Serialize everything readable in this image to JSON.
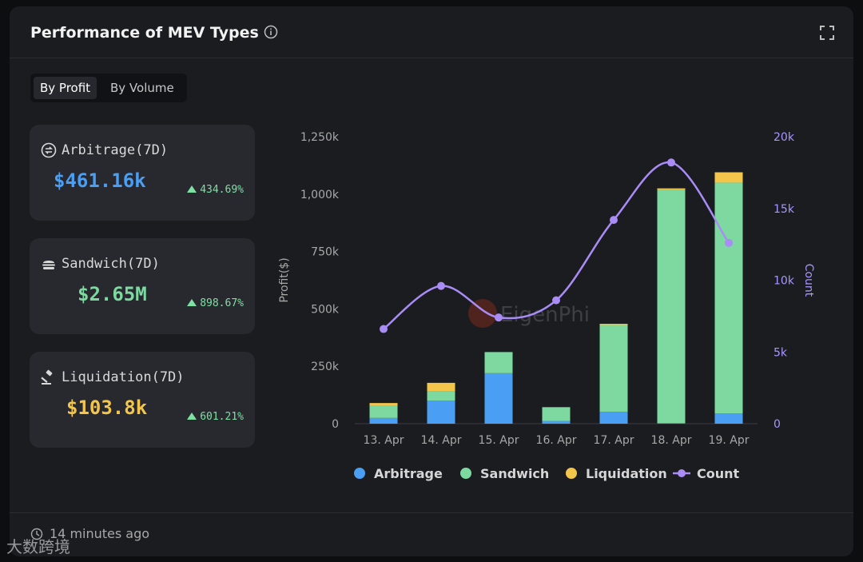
{
  "header": {
    "title": "Performance of MEV Types"
  },
  "tabs": [
    {
      "label": "By Profit",
      "active": true
    },
    {
      "label": "By Volume",
      "active": false
    }
  ],
  "stats": [
    {
      "label": "Arbitrage(7D)",
      "value": "$461.16k",
      "change": "434.69%",
      "color": "#4a9ff5",
      "icon": "arbitrage-icon"
    },
    {
      "label": "Sandwich(7D)",
      "value": "$2.65M",
      "change": "898.67%",
      "color": "#7dd9a0",
      "icon": "sandwich-icon"
    },
    {
      "label": "Liquidation(7D)",
      "value": "$103.8k",
      "change": "601.21%",
      "color": "#f3c64b",
      "icon": "gavel-icon"
    }
  ],
  "chart_data": {
    "type": "bar",
    "stacked": true,
    "categories": [
      "13. Apr",
      "14. Apr",
      "15. Apr",
      "16. Apr",
      "17. Apr",
      "18. Apr",
      "19. Apr"
    ],
    "ylabel": "Profit($)",
    "y2label": "Count",
    "ylim": [
      0,
      1250000
    ],
    "y2lim": [
      0,
      20000
    ],
    "yticks": [
      "0",
      "250k",
      "500k",
      "750k",
      "1,000k",
      "1,250k"
    ],
    "y2ticks": [
      "0",
      "5k",
      "10k",
      "15k",
      "20k"
    ],
    "series": [
      {
        "name": "Arbitrage",
        "color": "#4a9ff5",
        "values": [
          25000,
          100000,
          220000,
          12000,
          52000,
          3000,
          45000
        ]
      },
      {
        "name": "Sandwich",
        "color": "#7dd9a0",
        "values": [
          52000,
          40000,
          92000,
          60000,
          378000,
          1015000,
          1005000
        ]
      },
      {
        "name": "Liquidation",
        "color": "#f3c64b",
        "values": [
          13000,
          38000,
          0,
          0,
          5000,
          7000,
          45000
        ]
      }
    ],
    "line": {
      "name": "Count",
      "color": "#a98cf5",
      "values": [
        6600,
        9600,
        7400,
        8600,
        14200,
        18200,
        12600
      ]
    },
    "watermark": "EigenPhi",
    "legend": "bottom"
  },
  "footer": {
    "updated": "14 minutes ago",
    "watermark": "大数跨境"
  }
}
